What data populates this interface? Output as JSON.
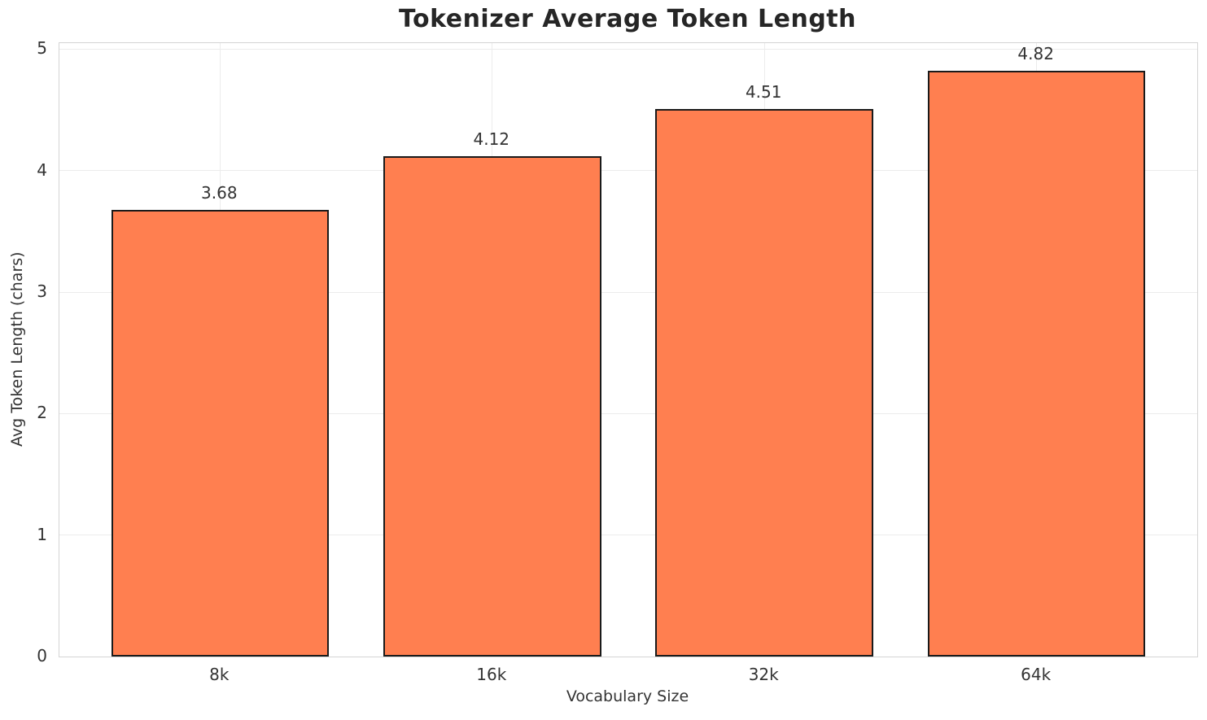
{
  "figure": {
    "background": "#ffffff"
  },
  "chart_data": {
    "type": "bar",
    "title": "Tokenizer Average Token Length",
    "xlabel": "Vocabulary Size",
    "ylabel": "Avg Token Length (chars)",
    "categories": [
      "8k",
      "16k",
      "32k",
      "64k"
    ],
    "values": [
      3.68,
      4.12,
      4.51,
      4.82
    ],
    "value_labels": [
      "3.68",
      "4.12",
      "4.51",
      "4.82"
    ],
    "yticks": [
      0,
      1,
      2,
      3,
      4,
      5
    ],
    "ylim": [
      0,
      5.05
    ],
    "grid": true,
    "legend": "none",
    "colors": {
      "bar_fill": "#ff7f50",
      "bar_edge": "#1a1a1a",
      "grid_line": "#ececec",
      "spine": "#d4d4d4",
      "tick_text": "#333333",
      "title_text": "#262626"
    }
  }
}
